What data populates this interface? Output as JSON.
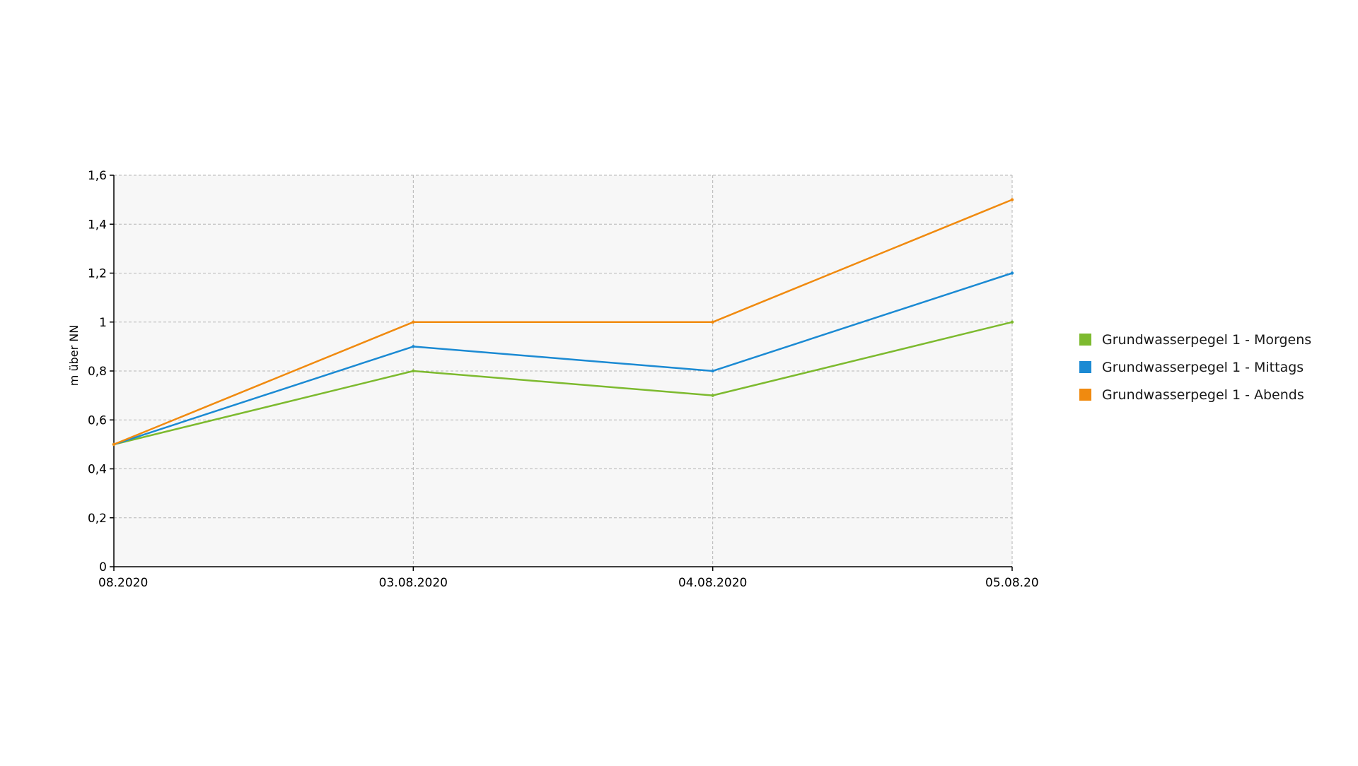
{
  "chart_data": {
    "type": "line",
    "title": "",
    "xlabel": "",
    "ylabel": "m über NN",
    "categories": [
      "08.2020",
      "03.08.2020",
      "04.08.2020",
      "05.08.20"
    ],
    "ylim": [
      0,
      1.6
    ],
    "yticks": [
      "0",
      "0,2",
      "0,4",
      "0,6",
      "0,8",
      "1",
      "1,2",
      "1,4",
      "1,6"
    ],
    "grid": true,
    "legend_position": "right",
    "series": [
      {
        "name": "Grundwasserpegel 1 - Morgens",
        "color": "#7dba2f",
        "values": [
          0.5,
          0.8,
          0.7,
          1.0
        ]
      },
      {
        "name": "Grundwasserpegel 1 - Mittags",
        "color": "#1b8ad3",
        "values": [
          0.5,
          0.9,
          0.8,
          1.2
        ]
      },
      {
        "name": "Grundwasserpegel 1 - Abends",
        "color": "#f08a0f",
        "values": [
          0.5,
          1.0,
          1.0,
          1.5
        ]
      }
    ]
  }
}
